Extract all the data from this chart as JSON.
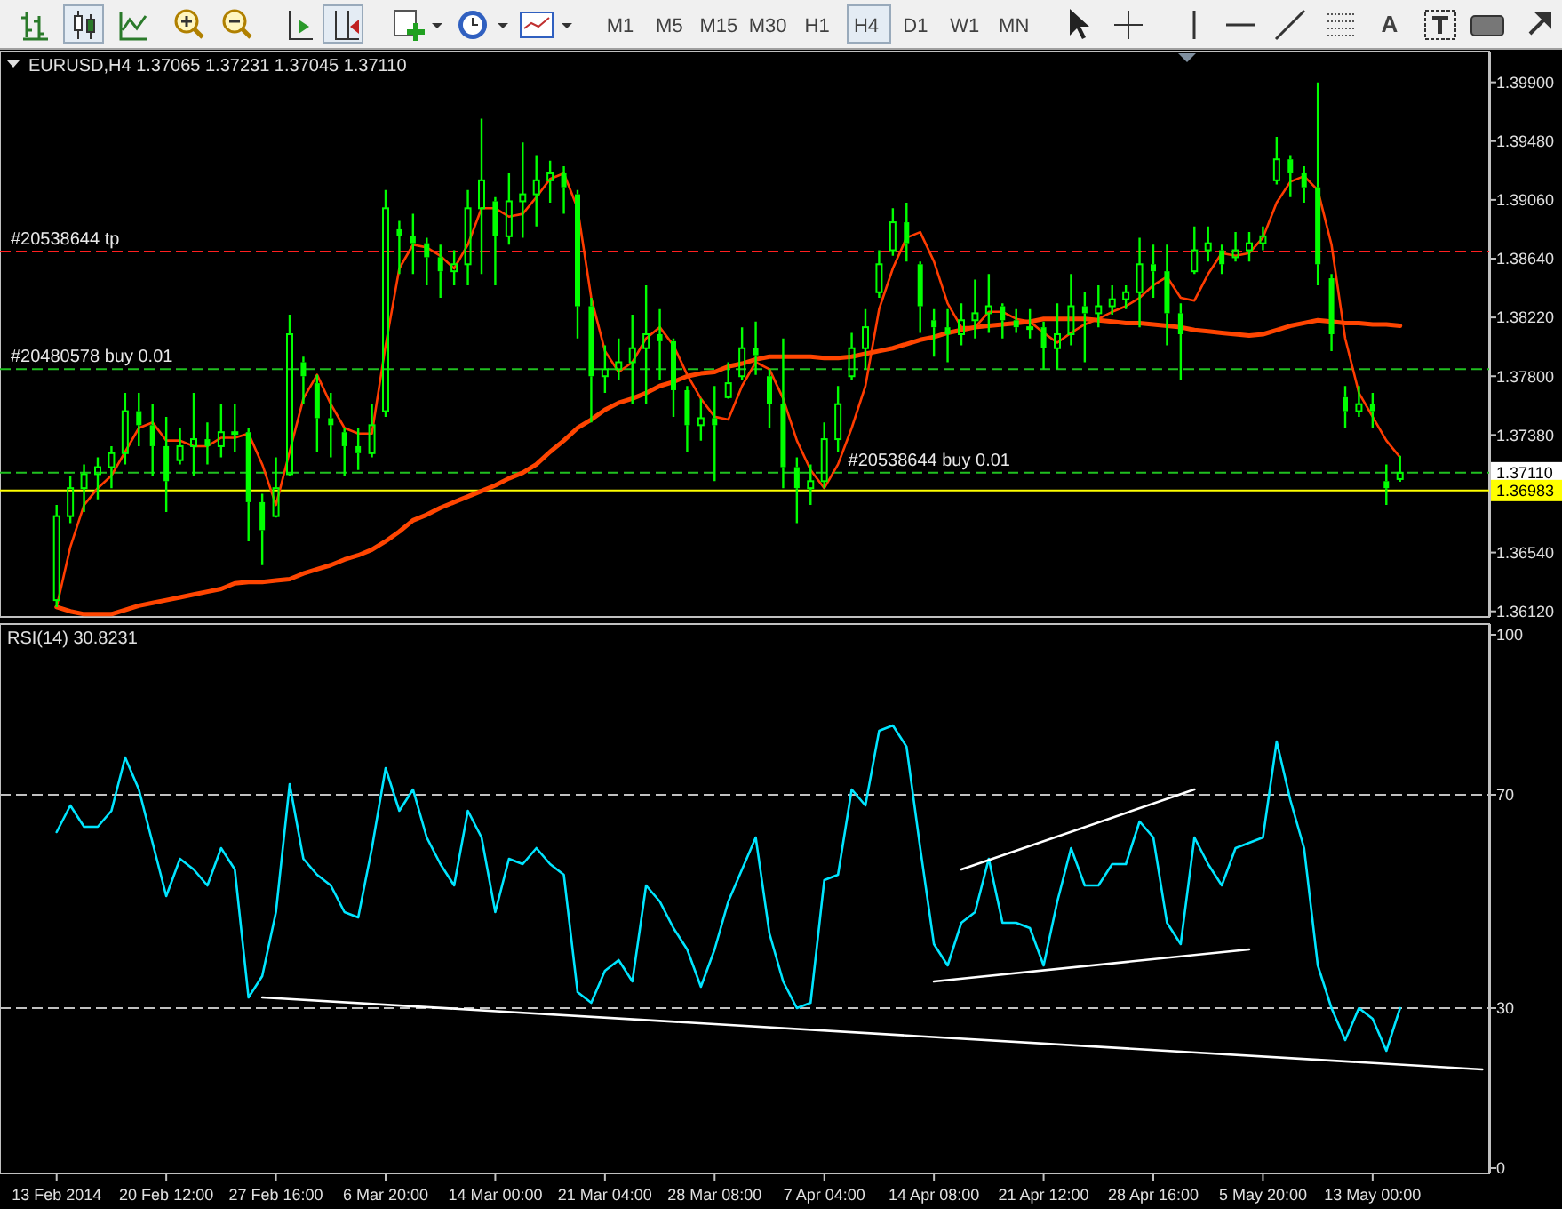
{
  "chart_data": [
    {
      "type": "other",
      "annotations": [
        "M1",
        "M5",
        "M15",
        "M30",
        "H1",
        "H4",
        "D1",
        "W1",
        "MN",
        "A"
      ]
    },
    {
      "type": "candlestick",
      "title": "EURUSD,H4 1.37065 1.37231 1.37045 1.37110",
      "color": "#00ff00",
      "tick_labels": "y",
      "categories": [
        null,
        null,
        null,
        null,
        null,
        null,
        null,
        null,
        null,
        null,
        null,
        null,
        null,
        null,
        null,
        null,
        null,
        null,
        null,
        null,
        null,
        null,
        null,
        null,
        null,
        null,
        null,
        null,
        null,
        null,
        null,
        null,
        null,
        null,
        null,
        null,
        null,
        null,
        null,
        null,
        null,
        null,
        null,
        null,
        null,
        null,
        null,
        null,
        null,
        null,
        null,
        null,
        null,
        null,
        null,
        null,
        null,
        null,
        null,
        null,
        null,
        null,
        null,
        null,
        null,
        null,
        null,
        null,
        null,
        null,
        null,
        null,
        null,
        null,
        null,
        null,
        null,
        null,
        null,
        null,
        null,
        null,
        null,
        null,
        null,
        null,
        null,
        null,
        null,
        null,
        null,
        null,
        null,
        null,
        null,
        null,
        null,
        null,
        null,
        null,
        null,
        null,
        null,
        null,
        null
      ],
      "ohlc": [
        [
          1.362,
          1.3688,
          1.3615,
          1.368
        ],
        [
          1.368,
          1.3709,
          1.3675,
          1.37
        ],
        [
          1.37,
          1.3717,
          1.3683,
          1.371
        ],
        [
          1.371,
          1.3722,
          1.3692,
          1.3715
        ],
        [
          1.3715,
          1.373,
          1.37,
          1.3725
        ],
        [
          1.3725,
          1.3768,
          1.3717,
          1.3755
        ],
        [
          1.3755,
          1.3768,
          1.373,
          1.3745
        ],
        [
          1.3745,
          1.376,
          1.3709,
          1.373
        ],
        [
          1.373,
          1.3751,
          1.3683,
          1.3705
        ],
        [
          1.372,
          1.3743,
          1.3717,
          1.373
        ],
        [
          1.373,
          1.3768,
          1.3709,
          1.3735
        ],
        [
          1.3735,
          1.3747,
          1.3717,
          1.373
        ],
        [
          1.373,
          1.376,
          1.3722,
          1.374
        ],
        [
          1.374,
          1.376,
          1.3726,
          1.374
        ],
        [
          1.374,
          1.3743,
          1.3662,
          1.369
        ],
        [
          1.369,
          1.3696,
          1.3645,
          1.367
        ],
        [
          1.368,
          1.3722,
          1.3679,
          1.37
        ],
        [
          1.371,
          1.3824,
          1.3709,
          1.381
        ],
        [
          1.379,
          1.3794,
          1.376,
          1.378
        ],
        [
          1.3775,
          1.3781,
          1.3726,
          1.375
        ],
        [
          1.375,
          1.3768,
          1.3722,
          1.3745
        ],
        [
          1.374,
          1.3743,
          1.3709,
          1.373
        ],
        [
          1.373,
          1.3743,
          1.3713,
          1.3725
        ],
        [
          1.3725,
          1.376,
          1.3722,
          1.3745
        ],
        [
          1.3755,
          1.3913,
          1.3751,
          1.39
        ],
        [
          1.3885,
          1.3891,
          1.3853,
          1.388
        ],
        [
          1.388,
          1.3896,
          1.3853,
          1.3875
        ],
        [
          1.3875,
          1.3879,
          1.3845,
          1.3865
        ],
        [
          1.3865,
          1.3874,
          1.3836,
          1.3855
        ],
        [
          1.3855,
          1.387,
          1.3845,
          1.386
        ],
        [
          1.386,
          1.3913,
          1.3845,
          1.39
        ],
        [
          1.39,
          1.3964,
          1.3853,
          1.392
        ],
        [
          1.3905,
          1.3908,
          1.3845,
          1.388
        ],
        [
          1.388,
          1.3925,
          1.3874,
          1.3905
        ],
        [
          1.3905,
          1.3947,
          1.3879,
          1.391
        ],
        [
          1.391,
          1.3938,
          1.3887,
          1.392
        ],
        [
          1.392,
          1.3934,
          1.3904,
          1.3925
        ],
        [
          1.3925,
          1.393,
          1.3896,
          1.3915
        ],
        [
          1.391,
          1.3913,
          1.3807,
          1.383
        ],
        [
          1.383,
          1.3836,
          1.3747,
          1.378
        ],
        [
          1.378,
          1.3802,
          1.3768,
          1.3785
        ],
        [
          1.3785,
          1.3807,
          1.3777,
          1.379
        ],
        [
          1.379,
          1.3824,
          1.376,
          1.38
        ],
        [
          1.38,
          1.3845,
          1.376,
          1.381
        ],
        [
          1.381,
          1.3828,
          1.3777,
          1.3805
        ],
        [
          1.3805,
          1.3807,
          1.3751,
          1.377
        ],
        [
          1.377,
          1.3773,
          1.3726,
          1.3745
        ],
        [
          1.3745,
          1.3764,
          1.3734,
          1.375
        ],
        [
          1.375,
          1.3773,
          1.3705,
          1.3745
        ],
        [
          1.3765,
          1.379,
          1.3764,
          1.3775
        ],
        [
          1.378,
          1.3815,
          1.3777,
          1.38
        ],
        [
          1.38,
          1.3819,
          1.3781,
          1.3795
        ],
        [
          1.378,
          1.3785,
          1.3743,
          1.376
        ],
        [
          1.376,
          1.3807,
          1.37,
          1.3715
        ],
        [
          1.3715,
          1.3722,
          1.3675,
          1.37
        ],
        [
          1.37,
          1.3717,
          1.3688,
          1.3705
        ],
        [
          1.3705,
          1.3747,
          1.37,
          1.3735
        ],
        [
          1.3735,
          1.3773,
          1.3726,
          1.376
        ],
        [
          1.378,
          1.3811,
          1.3777,
          1.38
        ],
        [
          1.38,
          1.3828,
          1.3785,
          1.3815
        ],
        [
          1.384,
          1.387,
          1.3836,
          1.386
        ],
        [
          1.387,
          1.39,
          1.3866,
          1.389
        ],
        [
          1.389,
          1.3904,
          1.3862,
          1.3875
        ],
        [
          1.386,
          1.3862,
          1.3811,
          1.383
        ],
        [
          1.382,
          1.3828,
          1.3794,
          1.3815
        ],
        [
          1.3815,
          1.3828,
          1.379,
          1.381
        ],
        [
          1.381,
          1.3832,
          1.3802,
          1.382
        ],
        [
          1.382,
          1.3849,
          1.3807,
          1.3825
        ],
        [
          1.3825,
          1.3853,
          1.3811,
          1.383
        ],
        [
          1.383,
          1.3832,
          1.3807,
          1.382
        ],
        [
          1.382,
          1.3828,
          1.3811,
          1.3815
        ],
        [
          1.3815,
          1.3828,
          1.3807,
          1.3815
        ],
        [
          1.3815,
          1.3819,
          1.3785,
          1.38
        ],
        [
          1.38,
          1.3832,
          1.3785,
          1.381
        ],
        [
          1.381,
          1.3853,
          1.3802,
          1.383
        ],
        [
          1.383,
          1.384,
          1.379,
          1.3825
        ],
        [
          1.3825,
          1.3845,
          1.3815,
          1.383
        ],
        [
          1.383,
          1.3845,
          1.3824,
          1.3835
        ],
        [
          1.3835,
          1.3845,
          1.3828,
          1.384
        ],
        [
          1.384,
          1.3879,
          1.3815,
          1.386
        ],
        [
          1.386,
          1.3874,
          1.3836,
          1.3855
        ],
        [
          1.3855,
          1.3874,
          1.3802,
          1.3825
        ],
        [
          1.3825,
          1.3832,
          1.3777,
          1.381
        ],
        [
          1.3855,
          1.3887,
          1.3853,
          1.387
        ],
        [
          1.387,
          1.3887,
          1.3862,
          1.3875
        ],
        [
          1.387,
          1.3874,
          1.3853,
          1.386
        ],
        [
          1.3865,
          1.3883,
          1.3862,
          1.387
        ],
        [
          1.387,
          1.3883,
          1.3862,
          1.3875
        ],
        [
          1.3875,
          1.3887,
          1.387,
          1.388
        ],
        [
          1.392,
          1.3951,
          1.3917,
          1.3935
        ],
        [
          1.3935,
          1.3938,
          1.3908,
          1.3925
        ],
        [
          1.3925,
          1.393,
          1.3904,
          1.3915
        ],
        [
          1.3915,
          1.399,
          1.3845,
          1.386
        ],
        [
          1.385,
          1.3853,
          1.3798,
          1.381
        ],
        [
          1.3765,
          1.3773,
          1.3743,
          1.3755
        ],
        [
          1.3755,
          1.3773,
          1.3751,
          1.376
        ],
        [
          1.376,
          1.3768,
          1.3743,
          1.3755
        ],
        [
          1.3705,
          1.3717,
          1.3688,
          1.37
        ],
        [
          1.37065,
          1.37231,
          1.37045,
          1.3711
        ],
        null,
        null,
        null,
        null,
        null,
        null
      ],
      "series": [
        {
          "type": "line",
          "color": "#ff3c00",
          "values": [
            1.3615,
            1.3658,
            1.3688,
            1.37,
            1.3709,
            1.3726,
            1.3743,
            1.3747,
            1.3734,
            1.3734,
            1.373,
            1.373,
            1.3736,
            1.3736,
            1.3739,
            1.3717,
            1.3688,
            1.3726,
            1.3764,
            1.3781,
            1.376,
            1.3743,
            1.3739,
            1.3739,
            1.3802,
            1.3857,
            1.3874,
            1.3872,
            1.3866,
            1.3857,
            1.3874,
            1.39,
            1.39,
            1.3894,
            1.3896,
            1.3908,
            1.3921,
            1.3925,
            1.39,
            1.3836,
            1.3798,
            1.3783,
            1.379,
            1.3807,
            1.3815,
            1.3802,
            1.3781,
            1.3764,
            1.3751,
            1.3749,
            1.3773,
            1.379,
            1.3785,
            1.3764,
            1.3734,
            1.3713,
            1.37,
            1.3717,
            1.3743,
            1.3773,
            1.3828,
            1.3857,
            1.3879,
            1.3883,
            1.3862,
            1.3832,
            1.3815,
            1.3815,
            1.3826,
            1.3826,
            1.3821,
            1.3819,
            1.3811,
            1.3804,
            1.3811,
            1.3817,
            1.3821,
            1.3826,
            1.383,
            1.3836,
            1.3845,
            1.3851,
            1.3836,
            1.3834,
            1.3853,
            1.3868,
            1.3866,
            1.3868,
            1.3879,
            1.3904,
            1.3919,
            1.3923,
            1.3913,
            1.3874,
            1.3807,
            1.3768,
            1.3751,
            1.3734,
            1.3722,
            null,
            null,
            null,
            null,
            null,
            null
          ]
        },
        {
          "type": "line",
          "color": "#ff4500",
          "values": [
            1.3615,
            1.3612,
            1.361,
            1.361,
            1.361,
            1.3613,
            1.3616,
            1.3618,
            1.362,
            1.3622,
            1.3624,
            1.3626,
            1.3628,
            1.3632,
            1.3633,
            1.3633,
            1.3634,
            1.3635,
            1.3639,
            1.3642,
            1.3645,
            1.3649,
            1.3652,
            1.3656,
            1.3662,
            1.3669,
            1.3677,
            1.3681,
            1.3686,
            1.369,
            1.3694,
            1.3698,
            1.3702,
            1.3707,
            1.3711,
            1.3717,
            1.3726,
            1.3734,
            1.3743,
            1.3749,
            1.3756,
            1.3761,
            1.3764,
            1.3768,
            1.3773,
            1.3776,
            1.378,
            1.3782,
            1.3783,
            1.3787,
            1.3789,
            1.3792,
            1.3794,
            1.3794,
            1.3794,
            1.3794,
            1.3793,
            1.3793,
            1.3794,
            1.3796,
            1.3798,
            1.38,
            1.3803,
            1.3806,
            1.3808,
            1.3811,
            1.3813,
            1.3815,
            1.3816,
            1.3817,
            1.3818,
            1.3819,
            1.3821,
            1.3821,
            1.3821,
            1.3821,
            1.382,
            1.3819,
            1.3818,
            1.3818,
            1.3817,
            1.3816,
            1.3815,
            1.3813,
            1.3812,
            1.3811,
            1.381,
            1.3809,
            1.381,
            1.3813,
            1.3816,
            1.3818,
            1.382,
            1.3819,
            1.3818,
            1.3818,
            1.3817,
            1.3817,
            1.3816,
            null,
            null,
            null,
            null,
            null,
            null
          ]
        }
      ],
      "ylim": [
        1.3608,
        1.4012
      ],
      "yticks": [
        {
          "value": 1.3612,
          "label": "1.36120"
        },
        {
          "value": 1.3654,
          "label": "1.36540"
        },
        {
          "value": 1.3738,
          "label": "1.37380"
        },
        {
          "value": 1.378,
          "label": "1.37800"
        },
        {
          "value": 1.3822,
          "label": "1.38220"
        },
        {
          "value": 1.3864,
          "label": "1.38640"
        },
        {
          "value": 1.3906,
          "label": "1.39060"
        },
        {
          "value": 1.3948,
          "label": "1.39480"
        },
        {
          "value": 1.399,
          "label": "1.39900"
        }
      ],
      "ref_lines": [
        {
          "axis": "y",
          "value": 1.3869,
          "label": "#20538644 tp",
          "color": "#ff2020",
          "line_style": "dashed"
        },
        {
          "axis": "y",
          "value": 1.3785,
          "label": "#20480578 buy 0.01",
          "color": "#20c020",
          "line_style": "dashed"
        },
        {
          "axis": "y",
          "value": 1.3711,
          "label": "#20538644 buy 0.01",
          "color": "#20c020",
          "line_style": "dashed"
        },
        {
          "axis": "y",
          "value": 1.36983,
          "label": "1.36983",
          "color": "#ffff00",
          "line_style": "solid"
        }
      ],
      "annotations": [
        "1.37110"
      ]
    },
    {
      "type": "line",
      "title": "RSI(14) 30.8231",
      "categories": [
        "13 Feb 2014",
        null,
        null,
        null,
        null,
        null,
        null,
        null,
        "20 Feb 12:00",
        null,
        null,
        null,
        null,
        null,
        null,
        null,
        "27 Feb 16:00",
        null,
        null,
        null,
        null,
        null,
        null,
        null,
        "6 Mar 20:00",
        null,
        null,
        null,
        null,
        null,
        null,
        null,
        "14 Mar 00:00",
        null,
        null,
        null,
        null,
        null,
        null,
        null,
        "21 Mar 04:00",
        null,
        null,
        null,
        null,
        null,
        null,
        null,
        "28 Mar 08:00",
        null,
        null,
        null,
        null,
        null,
        null,
        null,
        "7 Apr 04:00",
        null,
        null,
        null,
        null,
        null,
        null,
        null,
        "14 Apr 08:00",
        null,
        null,
        null,
        null,
        null,
        null,
        null,
        "21 Apr 12:00",
        null,
        null,
        null,
        null,
        null,
        null,
        null,
        "28 Apr 16:00",
        null,
        null,
        null,
        null,
        null,
        null,
        null,
        "5 May 20:00",
        null,
        null,
        null,
        null,
        null,
        null,
        null,
        "13 May 00:00",
        null,
        null,
        null,
        null,
        null,
        null,
        null,
        null
      ],
      "series": [
        {
          "color": "#00e5ff",
          "values": [
            63,
            68,
            64,
            64,
            67,
            77,
            71,
            61,
            51,
            58,
            56,
            53,
            60,
            56,
            32,
            36,
            48,
            72,
            58,
            55,
            53,
            48,
            47,
            60,
            75,
            67,
            71,
            62,
            57,
            53,
            67,
            62,
            48,
            58,
            57,
            60,
            57,
            55,
            33,
            31,
            37,
            39,
            35,
            53,
            50,
            45,
            41,
            34,
            41,
            50,
            56,
            62,
            44,
            35,
            30,
            31,
            54,
            55,
            71,
            68,
            82,
            83,
            79,
            60,
            42,
            38,
            46,
            48,
            58,
            46,
            46,
            45,
            38,
            50,
            60,
            53,
            53,
            57,
            57,
            65,
            62,
            46,
            42,
            62,
            57,
            53,
            60,
            61,
            62,
            80,
            69,
            60,
            38,
            30,
            24,
            30,
            28,
            22,
            30,
            null,
            null,
            null,
            null,
            null,
            null
          ]
        },
        {
          "color": "#ffffff",
          "values": [
            null,
            null,
            null,
            null,
            null,
            null,
            null,
            null,
            null,
            null,
            null,
            null,
            null,
            null,
            null,
            32,
            null,
            null,
            null,
            null,
            null,
            null,
            null,
            null,
            null,
            null,
            null,
            null,
            null,
            null,
            null,
            null,
            null,
            null,
            null,
            null,
            null,
            null,
            null,
            null,
            null,
            null,
            null,
            null,
            null,
            null,
            null,
            null,
            null,
            null,
            null,
            null,
            null,
            null,
            null,
            null,
            null,
            null,
            null,
            null,
            null,
            null,
            null,
            null,
            null,
            null,
            null,
            null,
            null,
            null,
            null,
            null,
            null,
            null,
            null,
            null,
            null,
            null,
            null,
            null,
            null,
            null,
            null,
            null,
            null,
            null,
            null,
            null,
            null,
            null,
            null,
            null,
            null,
            null,
            null,
            null,
            null,
            null,
            null,
            null,
            null,
            null,
            null,
            null,
            18.5
          ]
        },
        {
          "color": "#ffffff",
          "values": [
            null,
            null,
            null,
            null,
            null,
            null,
            null,
            null,
            null,
            null,
            null,
            null,
            null,
            null,
            null,
            null,
            null,
            null,
            null,
            null,
            null,
            null,
            null,
            null,
            null,
            null,
            null,
            null,
            null,
            null,
            null,
            null,
            null,
            null,
            null,
            null,
            null,
            null,
            null,
            null,
            null,
            null,
            null,
            null,
            null,
            null,
            null,
            null,
            null,
            null,
            null,
            null,
            null,
            null,
            null,
            null,
            null,
            null,
            null,
            null,
            null,
            null,
            null,
            null,
            null,
            null,
            56,
            null,
            null,
            null,
            null,
            null,
            null,
            null,
            null,
            null,
            null,
            null,
            null,
            null,
            null,
            null,
            null,
            71,
            null,
            null,
            null,
            null,
            null,
            null,
            null,
            null,
            null,
            null,
            null,
            null,
            null,
            null,
            null,
            null,
            null,
            null,
            null,
            null,
            null
          ]
        },
        {
          "color": "#ffffff",
          "values": [
            null,
            null,
            null,
            null,
            null,
            null,
            null,
            null,
            null,
            null,
            null,
            null,
            null,
            null,
            null,
            null,
            null,
            null,
            null,
            null,
            null,
            null,
            null,
            null,
            null,
            null,
            null,
            null,
            null,
            null,
            null,
            null,
            null,
            null,
            null,
            null,
            null,
            null,
            null,
            null,
            null,
            null,
            null,
            null,
            null,
            null,
            null,
            null,
            null,
            null,
            null,
            null,
            null,
            null,
            null,
            null,
            null,
            null,
            null,
            null,
            null,
            null,
            null,
            null,
            35,
            null,
            null,
            null,
            null,
            null,
            null,
            null,
            null,
            null,
            null,
            null,
            null,
            null,
            null,
            null,
            null,
            null,
            null,
            null,
            null,
            null,
            null,
            41,
            null,
            null,
            null,
            null,
            null,
            null,
            null,
            null,
            null,
            null,
            null,
            null,
            null,
            null,
            null,
            null,
            null
          ]
        }
      ],
      "ylim": [
        -1,
        102
      ],
      "yticks": [
        0,
        30,
        70,
        100
      ],
      "ref_lines": [
        {
          "axis": "y",
          "value": 30,
          "color": "#c0c0c0",
          "line_style": "dashed"
        },
        {
          "axis": "y",
          "value": 70,
          "color": "#c0c0c0",
          "line_style": "dashed"
        }
      ]
    }
  ]
}
